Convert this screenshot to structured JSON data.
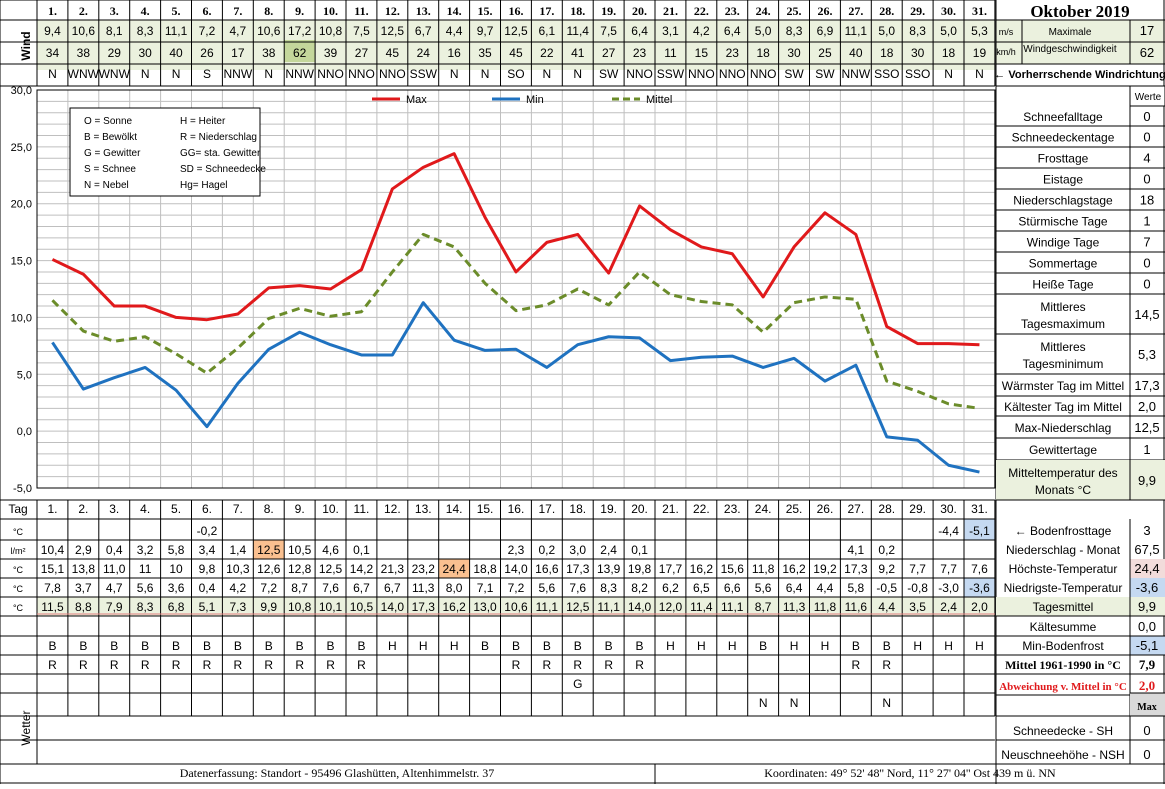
{
  "title": "Oktober 2019",
  "days": [
    "1.",
    "2.",
    "3.",
    "4.",
    "5.",
    "6.",
    "7.",
    "8.",
    "9.",
    "10.",
    "11.",
    "12.",
    "13.",
    "14.",
    "15.",
    "16.",
    "17.",
    "18.",
    "19.",
    "20.",
    "21.",
    "22.",
    "23.",
    "24.",
    "25.",
    "26.",
    "27.",
    "28.",
    "29.",
    "30.",
    "31."
  ],
  "wind": {
    "label": "Wind",
    "unit_ms": "m/s",
    "unit_kmh": "km/h",
    "ms": [
      "9,4",
      "10,6",
      "8,1",
      "8,3",
      "11,1",
      "7,2",
      "4,7",
      "10,6",
      "17,2",
      "10,8",
      "7,5",
      "12,5",
      "6,7",
      "4,4",
      "9,7",
      "12,5",
      "6,1",
      "11,4",
      "7,5",
      "6,4",
      "3,1",
      "4,2",
      "6,4",
      "5,0",
      "8,3",
      "6,9",
      "11,1",
      "5,0",
      "8,3",
      "5,0",
      "5,3"
    ],
    "kmh": [
      "34",
      "38",
      "29",
      "30",
      "40",
      "26",
      "17",
      "38",
      "62",
      "39",
      "27",
      "45",
      "24",
      "16",
      "35",
      "45",
      "22",
      "41",
      "27",
      "23",
      "11",
      "15",
      "23",
      "18",
      "30",
      "25",
      "40",
      "18",
      "30",
      "18",
      "19"
    ],
    "dir": [
      "N",
      "WNW",
      "WNW",
      "N",
      "N",
      "S",
      "NNW",
      "N",
      "NNW",
      "NNO",
      "NNO",
      "NNO",
      "SSW",
      "N",
      "N",
      "SO",
      "N",
      "N",
      "SW",
      "NNO",
      "SSW",
      "NNO",
      "NNO",
      "NNO",
      "SW",
      "SW",
      "NNW",
      "SSO",
      "SSO",
      "N",
      "N"
    ],
    "max_label": "Maximale Windgeschwindigkeit",
    "max_ms": "17",
    "max_kmh": "62",
    "dir_caption": "← Vorherrschende Windrichtung"
  },
  "legend_box": [
    [
      "O = Sonne",
      "H = Heiter"
    ],
    [
      "B = Bewölkt",
      "R = Niederschlag"
    ],
    [
      "G = Gewitter",
      "GG= sta. Gewitter"
    ],
    [
      "S = Schnee",
      "SD = Schneedecke"
    ],
    [
      "N = Nebel",
      "Hg= Hagel"
    ]
  ],
  "chart_data": {
    "type": "line",
    "x": [
      1,
      2,
      3,
      4,
      5,
      6,
      7,
      8,
      9,
      10,
      11,
      12,
      13,
      14,
      15,
      16,
      17,
      18,
      19,
      20,
      21,
      22,
      23,
      24,
      25,
      26,
      27,
      28,
      29,
      30,
      31
    ],
    "ylim": [
      -5,
      30
    ],
    "yticks": [
      "30,0",
      "25,0",
      "20,0",
      "15,0",
      "10,0",
      "5,0",
      "0,0",
      "-5,0"
    ],
    "grid": true,
    "legend_position": "top",
    "series": [
      {
        "name": "Max",
        "color": "#e0191b",
        "style": "solid",
        "values": [
          15.1,
          13.8,
          11.0,
          11.0,
          10.0,
          9.8,
          10.3,
          12.6,
          12.8,
          12.5,
          14.2,
          21.3,
          23.2,
          24.4,
          18.8,
          14.0,
          16.6,
          17.3,
          13.9,
          19.8,
          17.7,
          16.2,
          15.6,
          11.8,
          16.2,
          19.2,
          17.3,
          9.2,
          7.7,
          7.7,
          7.6
        ]
      },
      {
        "name": "Min",
        "color": "#1f72c0",
        "style": "solid",
        "values": [
          7.8,
          3.7,
          4.7,
          5.6,
          3.6,
          0.4,
          4.2,
          7.2,
          8.7,
          7.6,
          6.7,
          6.7,
          11.3,
          8.0,
          7.1,
          7.2,
          5.6,
          7.6,
          8.3,
          8.2,
          6.2,
          6.5,
          6.6,
          5.6,
          6.4,
          4.4,
          5.8,
          -0.5,
          -0.8,
          -3.0,
          -3.6
        ]
      },
      {
        "name": "Mittel",
        "color": "#6b8c2a",
        "style": "dashed",
        "values": [
          11.5,
          8.8,
          7.9,
          8.3,
          6.8,
          5.1,
          7.3,
          9.9,
          10.8,
          10.1,
          10.5,
          14.0,
          17.3,
          16.2,
          13.0,
          10.6,
          11.1,
          12.5,
          11.1,
          14.0,
          12.0,
          11.4,
          11.1,
          8.7,
          11.3,
          11.8,
          11.6,
          4.4,
          3.5,
          2.4,
          2.0
        ]
      }
    ]
  },
  "stats_header": "Werte",
  "stats": [
    {
      "label": "Schneefalltage",
      "value": "0"
    },
    {
      "label": "Schneedeckentage",
      "value": "0"
    },
    {
      "label": "Frosttage",
      "value": "4"
    },
    {
      "label": "Eistage",
      "value": "0"
    },
    {
      "label": "Niederschlagstage",
      "value": "18"
    },
    {
      "label": "Stürmische Tage",
      "value": "1"
    },
    {
      "label": "Windige Tage",
      "value": "7"
    },
    {
      "label": "Sommertage",
      "value": "0"
    },
    {
      "label": "Heiße Tage",
      "value": "0"
    },
    {
      "label": "Mittleres Tagesmaximum",
      "value": "14,5"
    },
    {
      "label": "Mittleres Tagesminimum",
      "value": "5,3"
    },
    {
      "label": "Wärmster Tag im Mittel",
      "value": "17,3"
    },
    {
      "label": "Kältester Tag im Mittel",
      "value": "2,0"
    },
    {
      "label": "Max-Niederschlag",
      "value": "12,5"
    },
    {
      "label": "Gewittertage",
      "value": "1"
    },
    {
      "label": "Mitteltemperatur des Monats °C",
      "value": "9,9"
    }
  ],
  "table": {
    "tag_label": "Tag",
    "ground_frost": {
      "unit": "°C",
      "values": [
        "",
        "",
        "",
        "",
        "",
        "-0,2",
        "",
        "",
        "",
        "",
        "",
        "",
        "",
        "",
        "",
        "",
        "",
        "",
        "",
        "",
        "",
        "",
        "",
        "",
        "",
        "",
        "",
        "",
        "",
        "-4,4",
        "-5,1"
      ],
      "label": "← Bodenfrosttage",
      "summary": "3"
    },
    "precip": {
      "unit": "l/m²",
      "values": [
        "10,4",
        "2,9",
        "0,4",
        "3,2",
        "5,8",
        "3,4",
        "1,4",
        "12,5",
        "10,5",
        "4,6",
        "0,1",
        "",
        "",
        "",
        "",
        "2,3",
        "0,2",
        "3,0",
        "2,4",
        "0,1",
        "",
        "",
        "",
        "",
        "",
        "",
        "4,1",
        "0,2",
        "",
        "",
        ""
      ],
      "label": "Niederschlag - Monat",
      "summary": "67,5"
    },
    "tmax": {
      "unit": "°C",
      "values": [
        "15,1",
        "13,8",
        "11,0",
        "11",
        "10",
        "9,8",
        "10,3",
        "12,6",
        "12,8",
        "12,5",
        "14,2",
        "21,3",
        "23,2",
        "24,4",
        "18,8",
        "14,0",
        "16,6",
        "17,3",
        "13,9",
        "19,8",
        "17,7",
        "16,2",
        "15,6",
        "11,8",
        "16,2",
        "19,2",
        "17,3",
        "9,2",
        "7,7",
        "7,7",
        "7,6"
      ],
      "label": "Höchste-Temperatur",
      "summary": "24,4"
    },
    "tmin": {
      "unit": "°C",
      "values": [
        "7,8",
        "3,7",
        "4,7",
        "5,6",
        "3,6",
        "0,4",
        "4,2",
        "7,2",
        "8,7",
        "7,6",
        "6,7",
        "6,7",
        "11,3",
        "8,0",
        "7,1",
        "7,2",
        "5,6",
        "7,6",
        "8,3",
        "8,2",
        "6,2",
        "6,5",
        "6,6",
        "5,6",
        "6,4",
        "4,4",
        "5,8",
        "-0,5",
        "-0,8",
        "-3,0",
        "-3,6"
      ],
      "label": "Niedrigste-Temperatur",
      "summary": "-3,6"
    },
    "tmean": {
      "unit": "°C",
      "values": [
        "11,5",
        "8,8",
        "7,9",
        "8,3",
        "6,8",
        "5,1",
        "7,3",
        "9,9",
        "10,8",
        "10,1",
        "10,5",
        "14,0",
        "17,3",
        "16,2",
        "13,0",
        "10,6",
        "11,1",
        "12,5",
        "11,1",
        "14,0",
        "12,0",
        "11,4",
        "11,1",
        "8,7",
        "11,3",
        "11,8",
        "11,6",
        "4,4",
        "3,5",
        "2,4",
        "2,0"
      ],
      "label": "Tagesmittel",
      "summary": "9,9"
    },
    "weather_label": "Wetter",
    "weather": [
      [
        "B",
        "B",
        "B",
        "B",
        "B",
        "B",
        "B",
        "B",
        "B",
        "B",
        "B",
        "H",
        "H",
        "H",
        "B",
        "B",
        "B",
        "B",
        "B",
        "B",
        "H",
        "H",
        "H",
        "B",
        "H",
        "H",
        "B",
        "B",
        "H",
        "H",
        "H"
      ],
      [
        "R",
        "R",
        "R",
        "R",
        "R",
        "R",
        "R",
        "R",
        "R",
        "R",
        "R",
        "",
        "",
        "",
        "",
        "R",
        "R",
        "R",
        "R",
        "R",
        "",
        "",
        "",
        "",
        "",
        "",
        "R",
        "R",
        "",
        "",
        ""
      ],
      [
        "",
        "",
        "",
        "",
        "",
        "",
        "",
        "",
        "",
        "",
        "",
        "",
        "",
        "",
        "",
        "",
        "",
        "G",
        "",
        "",
        "",
        "",
        "",
        "",
        "",
        "",
        "",
        "",
        "",
        "",
        ""
      ],
      [
        "",
        "",
        "",
        "",
        "",
        "",
        "",
        "",
        "",
        "",
        "",
        "",
        "",
        "",
        "",
        "",
        "",
        "",
        "",
        "",
        "",
        "",
        "",
        "N",
        "N",
        "",
        "",
        "N",
        "",
        "",
        ""
      ]
    ],
    "extra": [
      {
        "label": "Kältesumme",
        "value": "0,0"
      },
      {
        "label": "Min-Bodenfrost",
        "value": "-5,1"
      },
      {
        "label": "Mittel 1961-1990 in °C",
        "value": "7,9"
      },
      {
        "label": "Abweichung v. Mittel in °C",
        "value": "2,0"
      },
      {
        "label": "",
        "value": "Max"
      },
      {
        "label": "Schneedecke - SH",
        "value": "0"
      },
      {
        "label": "Neuschneehöhe - NSH",
        "value": "0"
      }
    ]
  },
  "footer": {
    "left": "Datenerfassung:  Standort -  95496  Glashütten, Altenhimmelstr. 37",
    "right": "Koordinaten:  49° 52' 48'' Nord,    11° 27' 04'' Ost    439 m ü. NN"
  },
  "colors": {
    "wind_bg": "#ebf1de",
    "highlight_green": "#c4d79b",
    "highlight_orange": "#fac090",
    "highlight_pink": "#f2dcdb",
    "highlight_blue": "#c5d9f1",
    "gray": "#d9d9d9"
  }
}
